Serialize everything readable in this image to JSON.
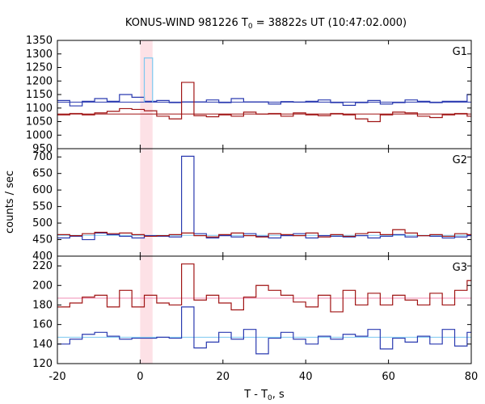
{
  "chart_data": {
    "type": "line",
    "title": "KONUS-WIND 981226 T0 = 38822s UT (10:47:02.000)",
    "title_parts": {
      "pre": "KONUS-WIND 981226 T",
      "sub": "0",
      "post": " = 38822s UT (10:47:02.000)"
    },
    "xlabel": "T - T0, s",
    "xlabel_parts": {
      "pre": "T - T",
      "sub": "0",
      "post": ", s"
    },
    "ylabel": "counts / sec",
    "xlim": [
      -20,
      80
    ],
    "xticks": [
      -20,
      0,
      20,
      40,
      60,
      80
    ],
    "highlight_interval": [
      0,
      3
    ],
    "colors": {
      "blue": "#2a3ab0",
      "red": "#a01414",
      "light_blue": "#7cc8f0",
      "pink": "#f08cb4",
      "band": "#fde1e6"
    },
    "panels": [
      {
        "label": "G1",
        "ylim": [
          950,
          1350
        ],
        "yticks": [
          950,
          1000,
          1050,
          1100,
          1150,
          1200,
          1250,
          1300,
          1350
        ],
        "background": [
          {
            "name": "blue",
            "level": 1122
          },
          {
            "name": "red",
            "level": 1078
          }
        ],
        "series": [
          {
            "color": "blue",
            "x_start": -20,
            "bin": 3,
            "values": [
              1128,
              1108,
              1125,
              1135,
              1125,
              1150,
              1140,
              1125,
              1128,
              1120,
              1123,
              1123,
              1130,
              1120,
              1135,
              1123,
              1123,
              1115,
              1124,
              1122,
              1125,
              1130,
              1120,
              1110,
              1120,
              1128,
              1115,
              1120,
              1130,
              1125,
              1120,
              1125,
              1125,
              1150
            ]
          },
          {
            "color": "red",
            "x_start": -20,
            "bin": 3,
            "values": [
              1075,
              1080,
              1075,
              1082,
              1088,
              1098,
              1095,
              1090,
              1070,
              1060,
              1195,
              1072,
              1068,
              1075,
              1070,
              1085,
              1078,
              1080,
              1070,
              1082,
              1075,
              1072,
              1080,
              1075,
              1060,
              1050,
              1075,
              1085,
              1082,
              1070,
              1065,
              1075,
              1080,
              1070
            ]
          },
          {
            "color": "light_blue",
            "x_start": 1,
            "bin": 2,
            "values": [
              1285
            ],
            "spike": true
          }
        ]
      },
      {
        "label": "G2",
        "ylim": [
          400,
          725
        ],
        "yticks": [
          400,
          450,
          500,
          550,
          600,
          650,
          700
        ],
        "background": [
          {
            "name": "light_blue",
            "level": 463
          }
        ],
        "series": [
          {
            "color": "blue",
            "x_start": -20,
            "bin": 3,
            "values": [
              455,
              460,
              450,
              470,
              465,
              460,
              455,
              462,
              460,
              458,
              702,
              468,
              455,
              462,
              458,
              468,
              460,
              455,
              462,
              468,
              455,
              462,
              460,
              458,
              462,
              455,
              460,
              465,
              458,
              462,
              460,
              455,
              458,
              462
            ]
          },
          {
            "color": "red",
            "x_start": -20,
            "bin": 3,
            "values": [
              465,
              462,
              468,
              472,
              468,
              470,
              465,
              460,
              462,
              465,
              470,
              462,
              458,
              465,
              470,
              462,
              458,
              468,
              465,
              462,
              470,
              458,
              465,
              460,
              468,
              472,
              465,
              480,
              470,
              462,
              465,
              460,
              468,
              465
            ]
          }
        ]
      },
      {
        "label": "G3",
        "ylim": [
          120,
          230
        ],
        "yticks": [
          120,
          140,
          160,
          180,
          200,
          220
        ],
        "background": [
          {
            "name": "pink",
            "level": 187
          },
          {
            "name": "light_blue",
            "level": 147
          }
        ],
        "series": [
          {
            "color": "red",
            "x_start": -20,
            "bin": 3,
            "values": [
              178,
              182,
              188,
              190,
              178,
              195,
              178,
              190,
              182,
              180,
              222,
              185,
              190,
              182,
              175,
              188,
              200,
              195,
              190,
              183,
              178,
              190,
              173,
              195,
              180,
              192,
              180,
              190,
              185,
              180,
              192,
              180,
              195,
              205
            ]
          },
          {
            "color": "blue",
            "x_start": -20,
            "bin": 3,
            "values": [
              140,
              145,
              150,
              152,
              148,
              145,
              146,
              146,
              147,
              146,
              178,
              136,
              142,
              152,
              145,
              155,
              130,
              146,
              152,
              145,
              140,
              148,
              145,
              150,
              148,
              155,
              135,
              146,
              142,
              148,
              140,
              155,
              138,
              152
            ]
          }
        ]
      }
    ]
  }
}
